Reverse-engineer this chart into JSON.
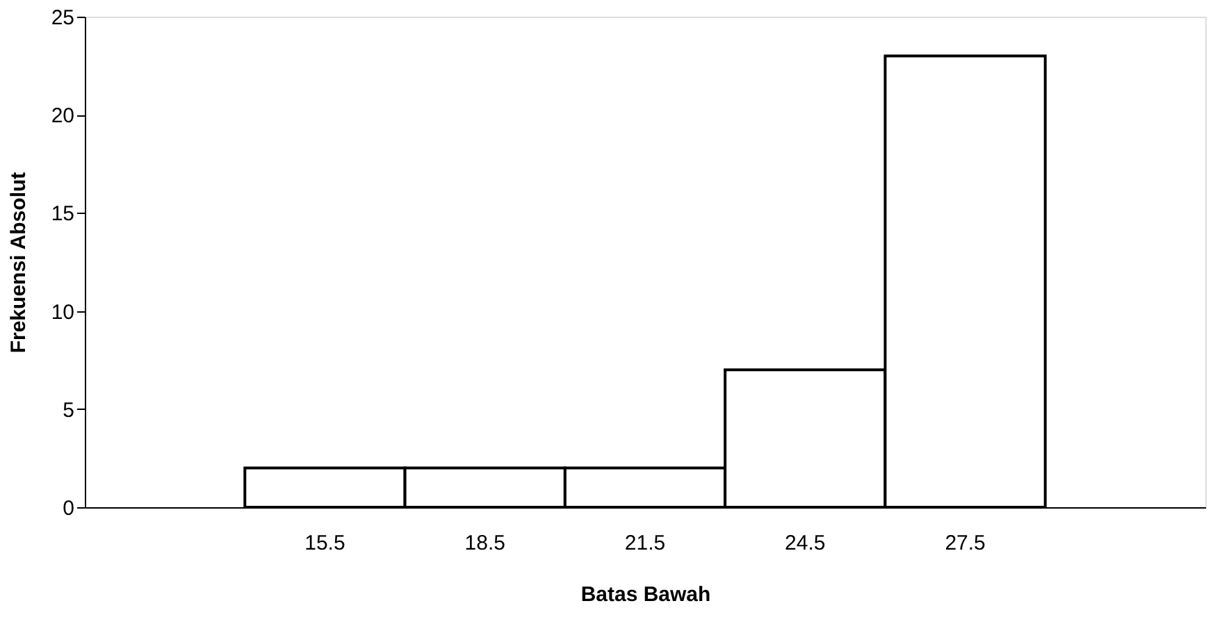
{
  "chart_data": {
    "type": "bar",
    "categories": [
      null,
      "15.5",
      "18.5",
      "21.5",
      "24.5",
      "27.5",
      null
    ],
    "values": [
      null,
      2,
      2,
      2,
      7,
      23,
      null
    ],
    "color": "#ffffff",
    "xlabel": "Batas Bawah",
    "ylabel": "Frekuensi Absolut",
    "ylim": [
      0,
      25
    ],
    "yticks": [
      0,
      5,
      10,
      15,
      20,
      25
    ],
    "grid": false
  }
}
